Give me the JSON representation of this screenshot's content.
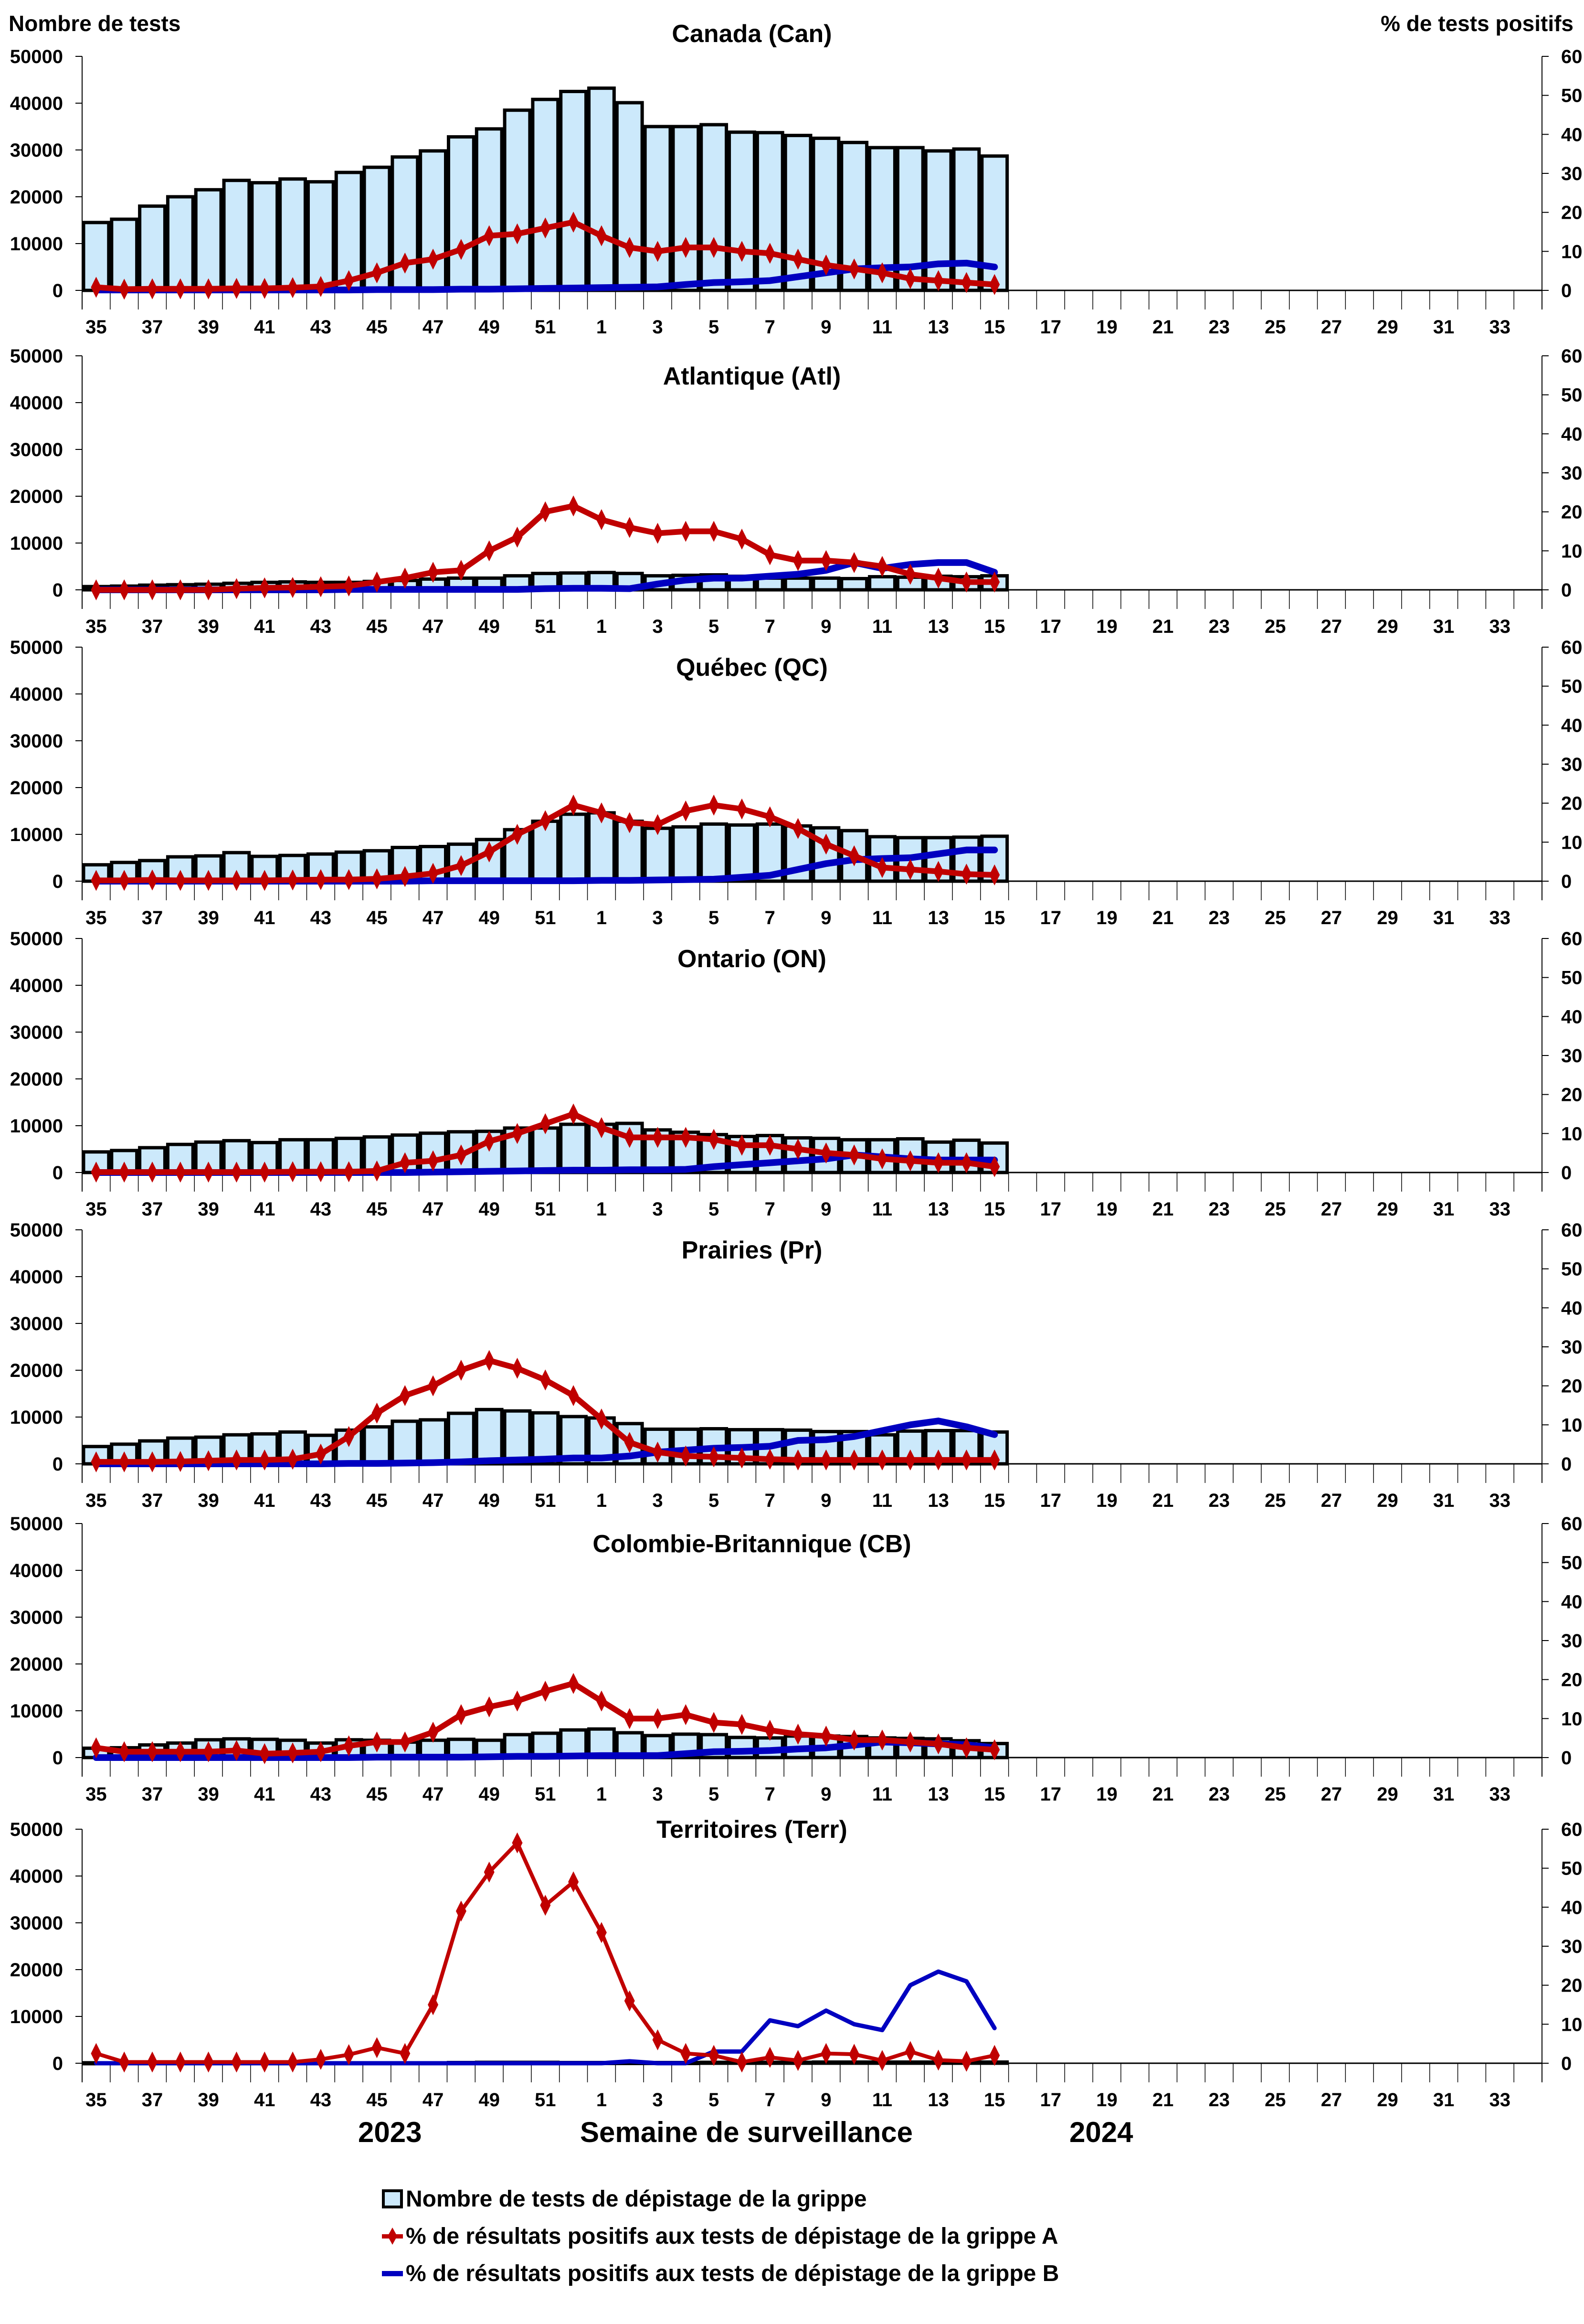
{
  "labels": {
    "y_left_title": "Nombre de tests",
    "y_right_title": "% de tests positifs",
    "x_title": "Semaine de surveillance",
    "year_left": "2023",
    "year_right": "2024"
  },
  "legend": [
    {
      "key": "tests",
      "label": "Nombre de tests de dépistage de la grippe",
      "color": "#cce9fb"
    },
    {
      "key": "fluA",
      "label": "% de résultats positifs aux tests de dépistage de la grippe A",
      "color": "#c00000"
    },
    {
      "key": "fluB",
      "label": "% de résultats positifs aux tests de dépistage de la grippe B",
      "color": "#0000c0"
    }
  ],
  "colors": {
    "bar_fill": "#cce9fb",
    "bar_stroke": "#000000",
    "fluA": "#c00000",
    "fluB": "#0000c0"
  },
  "chart_data": {
    "type": "bar",
    "description": "Combo chart: bars = number of tests (left axis), lines = % positive (right axis)",
    "weeks": [
      35,
      36,
      37,
      38,
      39,
      40,
      41,
      42,
      43,
      44,
      45,
      46,
      47,
      48,
      49,
      50,
      51,
      52,
      1,
      2,
      3,
      4,
      5,
      6,
      7,
      8,
      9,
      10,
      11,
      12,
      13,
      14,
      15,
      16,
      17,
      18,
      19,
      20,
      21,
      22,
      23,
      24,
      25,
      26,
      27,
      28,
      29,
      30,
      31,
      32,
      33,
      34
    ],
    "x_tick_labels": [
      "35",
      "37",
      "39",
      "41",
      "43",
      "45",
      "47",
      "49",
      "51",
      "1",
      "3",
      "5",
      "7",
      "9",
      "11",
      "13",
      "15",
      "17",
      "19",
      "21",
      "23",
      "25",
      "27",
      "29",
      "31",
      "33"
    ],
    "y_left": {
      "title": "Nombre de tests",
      "range": [
        0,
        50000
      ],
      "ticks": [
        0,
        10000,
        20000,
        30000,
        40000,
        50000
      ]
    },
    "y_right": {
      "title": "% de tests positifs",
      "range": [
        0,
        60
      ],
      "ticks": [
        0,
        10,
        20,
        30,
        40,
        50,
        60
      ]
    },
    "legend_position": "bottom",
    "panels": [
      {
        "title": "Canada (Can)",
        "tests": [
          14500,
          15200,
          18000,
          20000,
          21500,
          23500,
          23000,
          23800,
          23200,
          25200,
          26300,
          28500,
          29800,
          32800,
          34500,
          38500,
          40800,
          42500,
          43200,
          40100,
          35000,
          35000,
          35400,
          33800,
          33700,
          33100,
          32500,
          31600,
          30500,
          30500,
          29800,
          30200,
          28700
        ],
        "fluA": [
          0.8,
          0.3,
          0.4,
          0.4,
          0.4,
          0.5,
          0.5,
          0.7,
          1.0,
          2.5,
          4.5,
          7.0,
          8.0,
          10.5,
          14.0,
          14.5,
          16.0,
          17.5,
          14.0,
          11.0,
          10.0,
          11.0,
          11.0,
          10.0,
          9.5,
          8.0,
          6.5,
          5.5,
          4.5,
          3.0,
          2.5,
          2.0,
          1.5
        ],
        "fluB": [
          0.1,
          0.1,
          0.1,
          0.1,
          0.1,
          0.1,
          0.1,
          0.1,
          0.1,
          0.1,
          0.2,
          0.2,
          0.2,
          0.3,
          0.3,
          0.4,
          0.5,
          0.6,
          0.7,
          0.8,
          0.9,
          1.5,
          2.0,
          2.2,
          2.5,
          3.5,
          4.5,
          5.5,
          5.8,
          6.0,
          6.8,
          7.0,
          6.0
        ]
      },
      {
        "title": "Atlantique (Atl)",
        "tests": [
          700,
          800,
          1000,
          1100,
          1200,
          1400,
          1600,
          1700,
          1600,
          1600,
          1800,
          2000,
          2300,
          2500,
          2500,
          3000,
          3500,
          3600,
          3700,
          3500,
          3000,
          3100,
          3200,
          2900,
          2500,
          2500,
          2500,
          2400,
          2800,
          2700,
          2900,
          2800,
          3000
        ],
        "fluA": [
          0,
          0,
          0,
          0,
          0,
          0.3,
          0.5,
          0.6,
          0.8,
          1.0,
          2.0,
          3.0,
          4.5,
          5.0,
          10.0,
          13.5,
          20.0,
          21.5,
          18.0,
          16.0,
          14.5,
          15.0,
          15.0,
          13.0,
          9.0,
          7.5,
          7.5,
          7.0,
          6.0,
          4.0,
          3.0,
          2.0,
          2.0
        ],
        "fluB": [
          0,
          0,
          0,
          0,
          0,
          0,
          0,
          0,
          0,
          0.1,
          0.1,
          0.1,
          0.1,
          0.1,
          0.1,
          0.1,
          0.3,
          0.4,
          0.4,
          0.3,
          1.5,
          2.5,
          3.0,
          3.0,
          3.5,
          4.0,
          5.0,
          7.0,
          5.5,
          6.5,
          7.0,
          7.0,
          4.5
        ]
      },
      {
        "title": "Québec (QC)",
        "tests": [
          3500,
          4000,
          4400,
          5200,
          5400,
          6100,
          5300,
          5500,
          5800,
          6200,
          6500,
          7200,
          7400,
          7900,
          8900,
          11000,
          12800,
          14300,
          14600,
          12800,
          11300,
          11600,
          12200,
          12000,
          12200,
          11800,
          11400,
          10800,
          9500,
          9300,
          9300,
          9400,
          9600
        ],
        "fluA": [
          0.2,
          0.2,
          0.3,
          0.2,
          0.2,
          0.2,
          0.2,
          0.3,
          0.4,
          0.4,
          0.6,
          1.2,
          2.0,
          4.0,
          7.5,
          12.0,
          15.5,
          19.5,
          17.5,
          15.0,
          14.5,
          18.0,
          19.5,
          18.5,
          16.5,
          13.5,
          9.5,
          6.5,
          3.5,
          3.0,
          2.5,
          1.8,
          1.6
        ],
        "fluB": [
          0,
          0,
          0,
          0,
          0,
          0,
          0,
          0,
          0,
          0,
          0,
          0,
          0.1,
          0.1,
          0.1,
          0.1,
          0.1,
          0.1,
          0.2,
          0.2,
          0.3,
          0.4,
          0.5,
          1.0,
          1.5,
          3.0,
          4.5,
          5.5,
          5.8,
          6.0,
          7.0,
          8.0,
          8.0
        ]
      },
      {
        "title": "Ontario (ON)",
        "tests": [
          4400,
          4700,
          5300,
          6000,
          6500,
          6800,
          6400,
          7000,
          7000,
          7300,
          7600,
          8000,
          8400,
          8700,
          8800,
          9500,
          9500,
          10300,
          10300,
          10500,
          9100,
          8600,
          8100,
          7700,
          7900,
          7400,
          7300,
          7000,
          7000,
          7200,
          6500,
          6900,
          6300
        ],
        "fluA": [
          0.1,
          0.1,
          0.1,
          0.1,
          0.1,
          0.1,
          0.1,
          0.2,
          0.2,
          0.2,
          0.4,
          2.5,
          3.0,
          4.5,
          8.0,
          10.0,
          12.5,
          15.0,
          11.5,
          9.0,
          9.0,
          9.0,
          8.5,
          7.0,
          7.0,
          6.0,
          5.0,
          4.5,
          3.5,
          3.0,
          2.5,
          2.5,
          1.5
        ],
        "fluB": [
          0,
          0,
          0,
          0,
          0,
          0,
          0,
          0,
          0,
          0,
          0,
          0,
          0.1,
          0.2,
          0.3,
          0.4,
          0.5,
          0.6,
          0.6,
          0.7,
          0.7,
          0.8,
          1.5,
          2.0,
          2.5,
          3.0,
          3.5,
          4.5,
          4.0,
          3.5,
          3.2,
          3.2,
          3.2
        ]
      },
      {
        "title": "Prairies (Pr)",
        "tests": [
          3700,
          4200,
          4900,
          5500,
          5700,
          6200,
          6400,
          6800,
          6100,
          7200,
          7900,
          9100,
          9400,
          10800,
          11600,
          11300,
          10900,
          10100,
          9800,
          8600,
          7400,
          7400,
          7500,
          7300,
          7300,
          7200,
          6900,
          6900,
          6200,
          7000,
          7100,
          7100,
          6800
        ],
        "fluA": [
          0.5,
          0.5,
          0.5,
          0.6,
          0.8,
          1.0,
          1.0,
          1.2,
          2.5,
          7.0,
          13.0,
          17.5,
          20.0,
          24.0,
          26.5,
          24.5,
          21.5,
          17.5,
          11.5,
          5.5,
          3.0,
          2.0,
          1.8,
          1.5,
          1.2,
          1.0,
          1.0,
          1.0,
          1.0,
          1.0,
          1.0,
          1.0,
          1.0
        ],
        "fluB": [
          0,
          0,
          0,
          0,
          0,
          0,
          0,
          0,
          0,
          0.1,
          0.1,
          0.2,
          0.3,
          0.5,
          0.8,
          1.0,
          1.2,
          1.5,
          1.5,
          2.0,
          3.0,
          3.5,
          4.0,
          4.2,
          4.5,
          6.0,
          6.2,
          7.0,
          8.5,
          10.0,
          11.0,
          9.5,
          7.5
        ]
      },
      {
        "title": "Colombie-Britannique (CB)",
        "tests": [
          2000,
          2100,
          2700,
          3100,
          3800,
          4000,
          3900,
          3700,
          3100,
          3800,
          3700,
          3300,
          3700,
          3900,
          3700,
          4900,
          5200,
          5900,
          6100,
          5300,
          4700,
          5000,
          4900,
          4300,
          4200,
          4600,
          4600,
          4500,
          4200,
          4100,
          4000,
          3600,
          3000
        ],
        "fluA": [
          2.5,
          1.5,
          1.5,
          1.5,
          1.5,
          1.8,
          1.0,
          1.2,
          1.5,
          3.0,
          4.0,
          4.0,
          6.5,
          11.0,
          13.0,
          14.5,
          17.0,
          19.0,
          14.5,
          10.0,
          10.0,
          11.0,
          9.0,
          8.5,
          7.0,
          6.0,
          5.5,
          4.5,
          4.5,
          4.0,
          3.5,
          2.5,
          2.0
        ],
        "fluB": [
          0,
          0,
          0,
          0,
          0,
          0,
          0,
          0,
          0,
          0,
          0.1,
          0.1,
          0.1,
          0.1,
          0.2,
          0.3,
          0.3,
          0.4,
          0.5,
          0.5,
          0.5,
          1.0,
          1.5,
          1.6,
          1.8,
          2.2,
          2.5,
          3.2,
          4.0,
          3.8,
          3.5,
          3.3,
          2.5
        ]
      },
      {
        "title": "Territoires (Terr)",
        "tests": [
          100,
          100,
          100,
          100,
          100,
          100,
          100,
          100,
          100,
          100,
          100,
          100,
          100,
          150,
          200,
          200,
          200,
          150,
          150,
          150,
          150,
          150,
          200,
          200,
          200,
          200,
          250,
          250,
          250,
          250,
          250,
          250,
          250
        ],
        "fluA": [
          2.5,
          0.3,
          0.3,
          0.3,
          0.3,
          0.3,
          0.3,
          0.3,
          1.0,
          2.2,
          4.0,
          2.5,
          15.0,
          39.0,
          49.0,
          56.5,
          40.5,
          46.5,
          33.5,
          16.0,
          6.0,
          2.5,
          2.0,
          0.3,
          1.5,
          0.7,
          2.5,
          2.3,
          0.7,
          3.0,
          0.8,
          0.5,
          2.0
        ],
        "fluB": [
          0,
          0,
          0,
          0,
          0,
          0,
          0,
          0,
          0,
          0,
          0,
          0,
          0,
          0,
          0,
          0,
          0,
          0,
          0,
          0.5,
          0,
          0,
          3.0,
          3.0,
          11.0,
          9.5,
          13.5,
          10.0,
          8.5,
          20.0,
          23.5,
          21.0,
          9.0
        ]
      }
    ]
  }
}
